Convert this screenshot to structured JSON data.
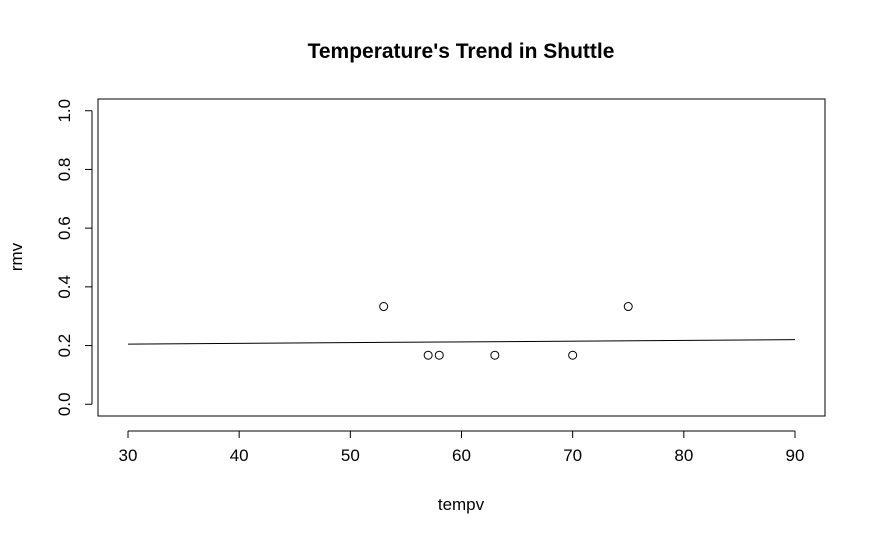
{
  "chart_data": {
    "type": "scatter",
    "title": "Temperature's Trend in Shuttle",
    "xlabel": "tempv",
    "ylabel": "rmv",
    "xlim": [
      27.3,
      92.7
    ],
    "ylim": [
      -0.04,
      1.04
    ],
    "xticks": [
      30,
      40,
      50,
      60,
      70,
      80,
      90
    ],
    "yticks": [
      0.0,
      0.2,
      0.4,
      0.6,
      0.8,
      1.0
    ],
    "xtick_labels": [
      "30",
      "40",
      "50",
      "60",
      "70",
      "80",
      "90"
    ],
    "ytick_labels": [
      "0.0",
      "0.2",
      "0.4",
      "0.6",
      "0.8",
      "1.0"
    ],
    "grid": false,
    "points": [
      {
        "x": 53,
        "y": 0.333
      },
      {
        "x": 57,
        "y": 0.167
      },
      {
        "x": 58,
        "y": 0.167
      },
      {
        "x": 63,
        "y": 0.167
      },
      {
        "x": 70,
        "y": 0.167
      },
      {
        "x": 75,
        "y": 0.333
      }
    ],
    "fit_line": [
      {
        "x": 30,
        "y": 0.205
      },
      {
        "x": 90,
        "y": 0.22
      }
    ]
  }
}
